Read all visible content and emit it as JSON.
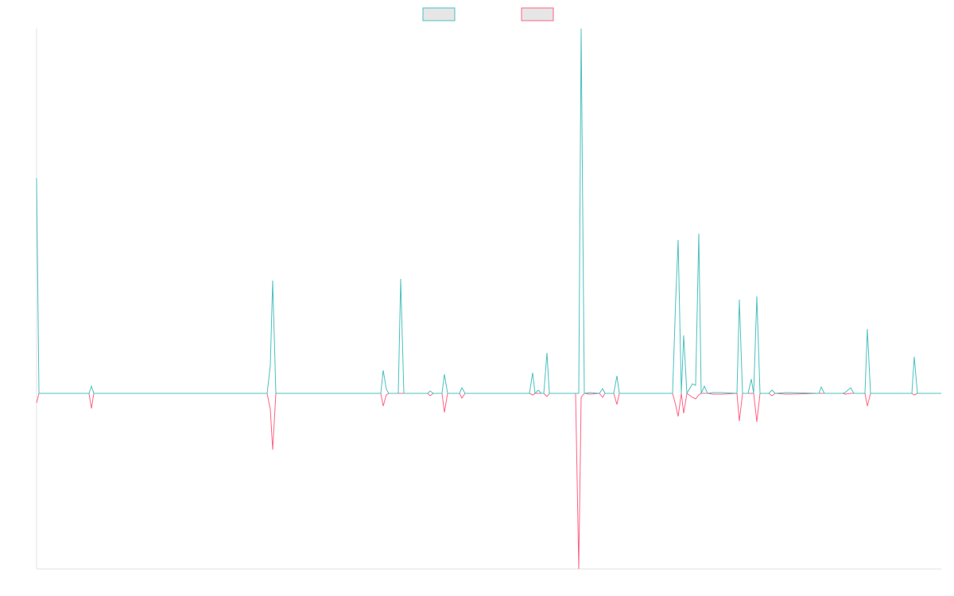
{
  "chart_data": {
    "type": "line",
    "x": [
      0,
      3,
      66,
      69,
      72,
      290,
      294,
      297,
      301,
      433,
      436,
      440,
      443,
      455,
      458,
      462,
      492,
      495,
      499,
      510,
      513,
      517,
      532,
      535,
      539,
      620,
      624,
      627,
      631,
      635,
      638,
      642,
      645,
      678,
      682,
      685,
      689,
      696,
      708,
      712,
      715,
      726,
      730,
      733,
      800,
      804,
      807,
      811,
      814,
      818,
      825,
      829,
      833,
      836,
      840,
      844,
      851,
      862,
      881,
      884,
      888,
      895,
      899,
      902,
      906,
      910,
      921,
      925,
      929,
      943,
      984,
      987,
      991,
      1014,
      1017,
      1024,
      1028,
      1042,
      1045,
      1049,
      1101,
      1104,
      1108,
      1138
    ],
    "xlim": [
      0,
      1138
    ],
    "ylim": [
      -221,
      459
    ],
    "legend": "top",
    "legend_fill": "#e6e6e6",
    "axis_color": "#e0e0e0",
    "series": [
      {
        "color": "#4bc0c0",
        "values": [
          271,
          0,
          0,
          9,
          0,
          0,
          35,
          142,
          0,
          0,
          29,
          5,
          0,
          0,
          144,
          0,
          0,
          3,
          0,
          0,
          24,
          0,
          0,
          7,
          0,
          0,
          26,
          0,
          4,
          0,
          0,
          51,
          0,
          0,
          0,
          459,
          0,
          1,
          0,
          6,
          0,
          0,
          22,
          0,
          0,
          120,
          193,
          0,
          73,
          0,
          12,
          10,
          201,
          0,
          9,
          0,
          1,
          1,
          0,
          118,
          0,
          0,
          18,
          0,
          122,
          0,
          0,
          4,
          0,
          1,
          0,
          8,
          0,
          0,
          1,
          7,
          0,
          0,
          81,
          0,
          0,
          46,
          0,
          0
        ]
      },
      {
        "color": "#ff6384",
        "values": [
          -12,
          0,
          0,
          -19,
          0,
          0,
          -20,
          -71,
          0,
          0,
          -16,
          -2,
          0,
          0,
          0,
          0,
          0,
          -3,
          0,
          0,
          -24,
          0,
          0,
          -6,
          0,
          0,
          -2,
          0,
          0,
          0,
          0,
          -4,
          0,
          0,
          -221,
          -5,
          0,
          -1,
          0,
          -5,
          0,
          0,
          -14,
          0,
          0,
          -15,
          -29,
          0,
          -25,
          0,
          -5,
          -7,
          -2,
          0,
          0,
          0,
          -1,
          -1,
          0,
          -35,
          0,
          0,
          0,
          0,
          -36,
          0,
          0,
          -3,
          0,
          -1,
          0,
          0,
          0,
          0,
          -1,
          0,
          0,
          0,
          -16,
          0,
          0,
          -2,
          0,
          0
        ]
      }
    ]
  }
}
